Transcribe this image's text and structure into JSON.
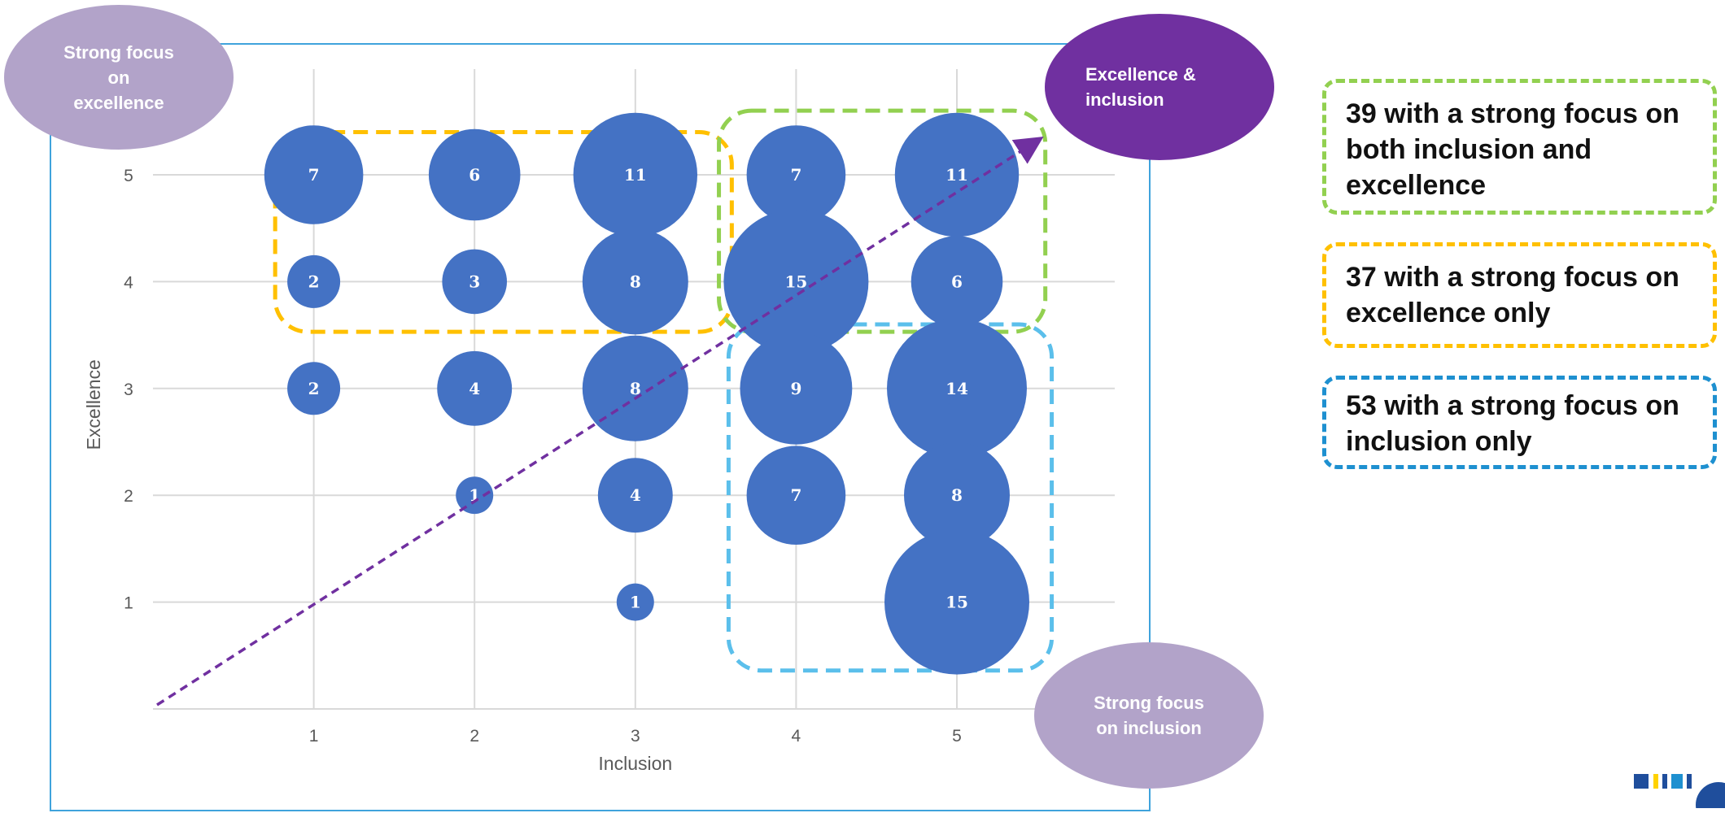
{
  "colors": {
    "bubble": "#4472c4",
    "bubble_label": "#ffffff",
    "small_bubble_label": "#404040",
    "grid": "#d9d9d9",
    "axis_text": "#595959",
    "diagonal": "#7030a0",
    "excellence_group": "#ffc000",
    "both_group": "#92d050",
    "inclusion_group": "#5bbfeb",
    "frame": "#3fa3dc",
    "soft_purple": "#b2a3c9",
    "dark_purple": "#7030a0",
    "inclusion_legend": "#1e90d0"
  },
  "annotations": {
    "strong_focus_excellence": "Strong focus\non\nexcellence",
    "excellence_and_inclusion": "Excellence &\ninclusion",
    "strong_focus_inclusion": "Strong focus\non inclusion"
  },
  "legend": {
    "both": "39 with a strong focus on both inclusion and excellence",
    "excellence_only": "37 with a strong focus on excellence only",
    "inclusion_only": "53 with a strong focus on inclusion only"
  },
  "chart_data": {
    "type": "scatter",
    "xlabel": "Inclusion",
    "ylabel": "Excellence",
    "x_ticks": [
      1,
      2,
      3,
      4,
      5
    ],
    "y_ticks": [
      1,
      2,
      3,
      4,
      5
    ],
    "xlim": [
      0,
      5
    ],
    "ylim": [
      0,
      5
    ],
    "grid": true,
    "points": [
      {
        "x": 1,
        "y": 5,
        "size": 7
      },
      {
        "x": 2,
        "y": 5,
        "size": 6
      },
      {
        "x": 3,
        "y": 5,
        "size": 11
      },
      {
        "x": 4,
        "y": 5,
        "size": 7
      },
      {
        "x": 5,
        "y": 5,
        "size": 11
      },
      {
        "x": 1,
        "y": 4,
        "size": 2
      },
      {
        "x": 2,
        "y": 4,
        "size": 3
      },
      {
        "x": 3,
        "y": 4,
        "size": 8
      },
      {
        "x": 4,
        "y": 4,
        "size": 15
      },
      {
        "x": 5,
        "y": 4,
        "size": 6
      },
      {
        "x": 1,
        "y": 3,
        "size": 2
      },
      {
        "x": 2,
        "y": 3,
        "size": 4
      },
      {
        "x": 3,
        "y": 3,
        "size": 8
      },
      {
        "x": 4,
        "y": 3,
        "size": 9
      },
      {
        "x": 5,
        "y": 3,
        "size": 14
      },
      {
        "x": 2,
        "y": 2,
        "size": 1
      },
      {
        "x": 3,
        "y": 2,
        "size": 4
      },
      {
        "x": 4,
        "y": 2,
        "size": 7
      },
      {
        "x": 5,
        "y": 2,
        "size": 8
      },
      {
        "x": 3,
        "y": 1,
        "size": 1
      },
      {
        "x": 5,
        "y": 1,
        "size": 15
      }
    ],
    "groups": [
      {
        "label": "excellence only",
        "x_range": [
          1,
          3
        ],
        "y_range": [
          4,
          5
        ]
      },
      {
        "label": "inclusion and excellence",
        "x_range": [
          4,
          5
        ],
        "y_range": [
          4,
          5
        ]
      },
      {
        "label": "inclusion only",
        "x_range": [
          4,
          5
        ],
        "y_range": [
          1,
          3
        ]
      }
    ]
  }
}
